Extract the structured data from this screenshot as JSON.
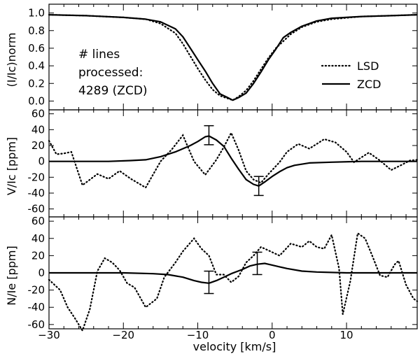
{
  "chart_data": {
    "type": "line",
    "layout": "three vertically stacked panels sharing the x axis",
    "xlabel": "velocity [km/s]",
    "xlim": [
      -30,
      19.5
    ],
    "x_ticks": [
      -30,
      -20,
      -10,
      0,
      10
    ],
    "panels": [
      {
        "ylabel": "(I/Ic)norm",
        "ylim": [
          -0.1,
          1.1
        ],
        "y_ticks": [
          0.0,
          0.2,
          0.4,
          0.6,
          0.8,
          1.0
        ],
        "annotation": [
          "# lines",
          "processed:",
          "4289 (ZCD)"
        ],
        "legend": {
          "position": "right",
          "entries": [
            {
              "label": "LSD",
              "style": "dotted"
            },
            {
              "label": "ZCD",
              "style": "solid"
            }
          ]
        },
        "series": [
          {
            "name": "LSD",
            "style": "dotted",
            "points": [
              [
                -30,
                0.98
              ],
              [
                -25,
                0.97
              ],
              [
                -20,
                0.95
              ],
              [
                -17,
                0.93
              ],
              [
                -15,
                0.88
              ],
              [
                -13,
                0.77
              ],
              [
                -12,
                0.65
              ],
              [
                -11,
                0.51
              ],
              [
                -10,
                0.37
              ],
              [
                -9,
                0.24
              ],
              [
                -8,
                0.13
              ],
              [
                -7,
                0.06
              ],
              [
                -6,
                0.03
              ],
              [
                -5.3,
                0.01
              ],
              [
                -4.5,
                0.05
              ],
              [
                -3.5,
                0.12
              ],
              [
                -2.5,
                0.23
              ],
              [
                -1.5,
                0.36
              ],
              [
                -0.5,
                0.49
              ],
              [
                0.5,
                0.6
              ],
              [
                1.5,
                0.68
              ],
              [
                2.5,
                0.76
              ],
              [
                4,
                0.84
              ],
              [
                6,
                0.9
              ],
              [
                8,
                0.93
              ],
              [
                12,
                0.96
              ],
              [
                16,
                0.97
              ],
              [
                19.5,
                0.98
              ]
            ]
          },
          {
            "name": "ZCD",
            "style": "solid",
            "points": [
              [
                -30,
                0.98
              ],
              [
                -25,
                0.97
              ],
              [
                -20,
                0.95
              ],
              [
                -17,
                0.93
              ],
              [
                -15,
                0.9
              ],
              [
                -13,
                0.82
              ],
              [
                -12,
                0.73
              ],
              [
                -11,
                0.6
              ],
              [
                -10,
                0.47
              ],
              [
                -9,
                0.34
              ],
              [
                -8,
                0.2
              ],
              [
                -7,
                0.08
              ],
              [
                -6,
                0.04
              ],
              [
                -5.3,
                0.01
              ],
              [
                -4.5,
                0.04
              ],
              [
                -3.5,
                0.09
              ],
              [
                -2.5,
                0.2
              ],
              [
                -1.5,
                0.33
              ],
              [
                -0.5,
                0.47
              ],
              [
                0.5,
                0.59
              ],
              [
                1.5,
                0.72
              ],
              [
                2.5,
                0.78
              ],
              [
                4,
                0.85
              ],
              [
                6,
                0.91
              ],
              [
                8,
                0.94
              ],
              [
                12,
                0.96
              ],
              [
                16,
                0.97
              ],
              [
                19.5,
                0.98
              ]
            ]
          }
        ]
      },
      {
        "ylabel": "V/Ic [ppm]",
        "ylim": [
          -70,
          65
        ],
        "y_ticks": [
          -60,
          -40,
          -20,
          0,
          20,
          40,
          60
        ],
        "series": [
          {
            "name": "LSD",
            "style": "dotted",
            "points": [
              [
                -30,
                26
              ],
              [
                -29,
                9
              ],
              [
                -28,
                10
              ],
              [
                -27,
                12
              ],
              [
                -25.5,
                -30
              ],
              [
                -23.5,
                -16
              ],
              [
                -22,
                -22
              ],
              [
                -20.5,
                -12
              ],
              [
                -19,
                -22
              ],
              [
                -17,
                -33
              ],
              [
                -15,
                0
              ],
              [
                -13.5,
                15
              ],
              [
                -12,
                33
              ],
              [
                -10.5,
                0
              ],
              [
                -9,
                -17
              ],
              [
                -7.5,
                2
              ],
              [
                -6.5,
                18
              ],
              [
                -5.5,
                36
              ],
              [
                -4.5,
                14
              ],
              [
                -3.5,
                -12
              ],
              [
                -2.5,
                -23
              ],
              [
                -1.5,
                -27
              ],
              [
                -0.5,
                -16
              ],
              [
                1,
                -1
              ],
              [
                2,
                12
              ],
              [
                3.5,
                22
              ],
              [
                5,
                16
              ],
              [
                7,
                28
              ],
              [
                8.5,
                24
              ],
              [
                10,
                12
              ],
              [
                11,
                -1
              ],
              [
                12,
                5
              ],
              [
                13,
                11
              ],
              [
                14.5,
                1
              ],
              [
                16,
                -11
              ],
              [
                17.5,
                -4
              ],
              [
                18.5,
                1
              ],
              [
                19.5,
                2
              ]
            ]
          },
          {
            "name": "ZCD",
            "style": "solid",
            "points": [
              [
                -30,
                0
              ],
              [
                -25,
                0
              ],
              [
                -22,
                0
              ],
              [
                -19,
                1
              ],
              [
                -17,
                2
              ],
              [
                -15,
                6
              ],
              [
                -13,
                12
              ],
              [
                -11,
                20
              ],
              [
                -10,
                25
              ],
              [
                -9,
                31
              ],
              [
                -8.5,
                32
              ],
              [
                -7.5,
                27
              ],
              [
                -6.5,
                19
              ],
              [
                -5.5,
                4
              ],
              [
                -4.5,
                -10
              ],
              [
                -3.5,
                -23
              ],
              [
                -2.5,
                -29
              ],
              [
                -1.8,
                -31
              ],
              [
                -1,
                -26
              ],
              [
                0,
                -19
              ],
              [
                1,
                -13
              ],
              [
                2,
                -8
              ],
              [
                3,
                -5
              ],
              [
                5,
                -2
              ],
              [
                8,
                -1
              ],
              [
                12,
                0
              ],
              [
                19.5,
                0
              ]
            ]
          }
        ],
        "error_bars": [
          {
            "x": -8.5,
            "y": 33,
            "low": 21,
            "high": 45
          },
          {
            "x": -1.8,
            "y": -31,
            "low": -43,
            "high": -19
          }
        ]
      },
      {
        "ylabel": "N/Ie [ppm]",
        "ylim": [
          -65,
          65
        ],
        "y_ticks": [
          -60,
          -40,
          -20,
          0,
          20,
          40,
          60
        ],
        "series": [
          {
            "name": "LSD",
            "style": "dotted",
            "points": [
              [
                -30,
                -8
              ],
              [
                -28.5,
                -20
              ],
              [
                -27.5,
                -40
              ],
              [
                -26.5,
                -53
              ],
              [
                -25.5,
                -67
              ],
              [
                -24.5,
                -42
              ],
              [
                -23.5,
                2
              ],
              [
                -22.5,
                17
              ],
              [
                -21.5,
                12
              ],
              [
                -20.5,
                3
              ],
              [
                -19.5,
                -12
              ],
              [
                -18.5,
                -17
              ],
              [
                -17,
                -40
              ],
              [
                -15.5,
                -30
              ],
              [
                -14.5,
                -5
              ],
              [
                -13,
                12
              ],
              [
                -12,
                25
              ],
              [
                -10.5,
                40
              ],
              [
                -9.5,
                28
              ],
              [
                -8.5,
                20
              ],
              [
                -7.5,
                -2
              ],
              [
                -6.5,
                -2
              ],
              [
                -5.5,
                -11
              ],
              [
                -4.5,
                -4
              ],
              [
                -3.5,
                12
              ],
              [
                -2.5,
                20
              ],
              [
                -1.5,
                30
              ],
              [
                -0.5,
                26
              ],
              [
                1,
                20
              ],
              [
                2.5,
                34
              ],
              [
                4,
                30
              ],
              [
                5,
                37
              ],
              [
                6,
                30
              ],
              [
                7,
                28
              ],
              [
                8,
                44
              ],
              [
                9,
                5
              ],
              [
                9.5,
                -48
              ],
              [
                10.5,
                -10
              ],
              [
                11.5,
                46
              ],
              [
                12.5,
                40
              ],
              [
                13.5,
                19
              ],
              [
                14.5,
                -3
              ],
              [
                15.5,
                -5
              ],
              [
                16.5,
                10
              ],
              [
                17,
                14
              ],
              [
                18,
                -14
              ],
              [
                19,
                -30
              ],
              [
                19.5,
                -33
              ]
            ]
          },
          {
            "name": "ZCD",
            "style": "solid",
            "points": [
              [
                -30,
                0
              ],
              [
                -25,
                0
              ],
              [
                -20,
                0
              ],
              [
                -16,
                -1
              ],
              [
                -14,
                -2
              ],
              [
                -12,
                -5
              ],
              [
                -10.5,
                -9
              ],
              [
                -9.5,
                -11
              ],
              [
                -8.5,
                -12
              ],
              [
                -7.5,
                -9
              ],
              [
                -6.5,
                -5
              ],
              [
                -5.5,
                -1
              ],
              [
                -4,
                4
              ],
              [
                -3,
                8
              ],
              [
                -2,
                10
              ],
              [
                -1,
                11
              ],
              [
                0,
                9
              ],
              [
                1,
                7
              ],
              [
                2,
                5
              ],
              [
                4,
                2
              ],
              [
                6,
                1
              ],
              [
                10,
                0
              ],
              [
                19.5,
                0
              ]
            ]
          }
        ],
        "error_bars": [
          {
            "x": -8.5,
            "y": -11,
            "low": -24,
            "high": 2
          },
          {
            "x": -2,
            "y": 11,
            "low": -2,
            "high": 24
          }
        ]
      }
    ]
  }
}
